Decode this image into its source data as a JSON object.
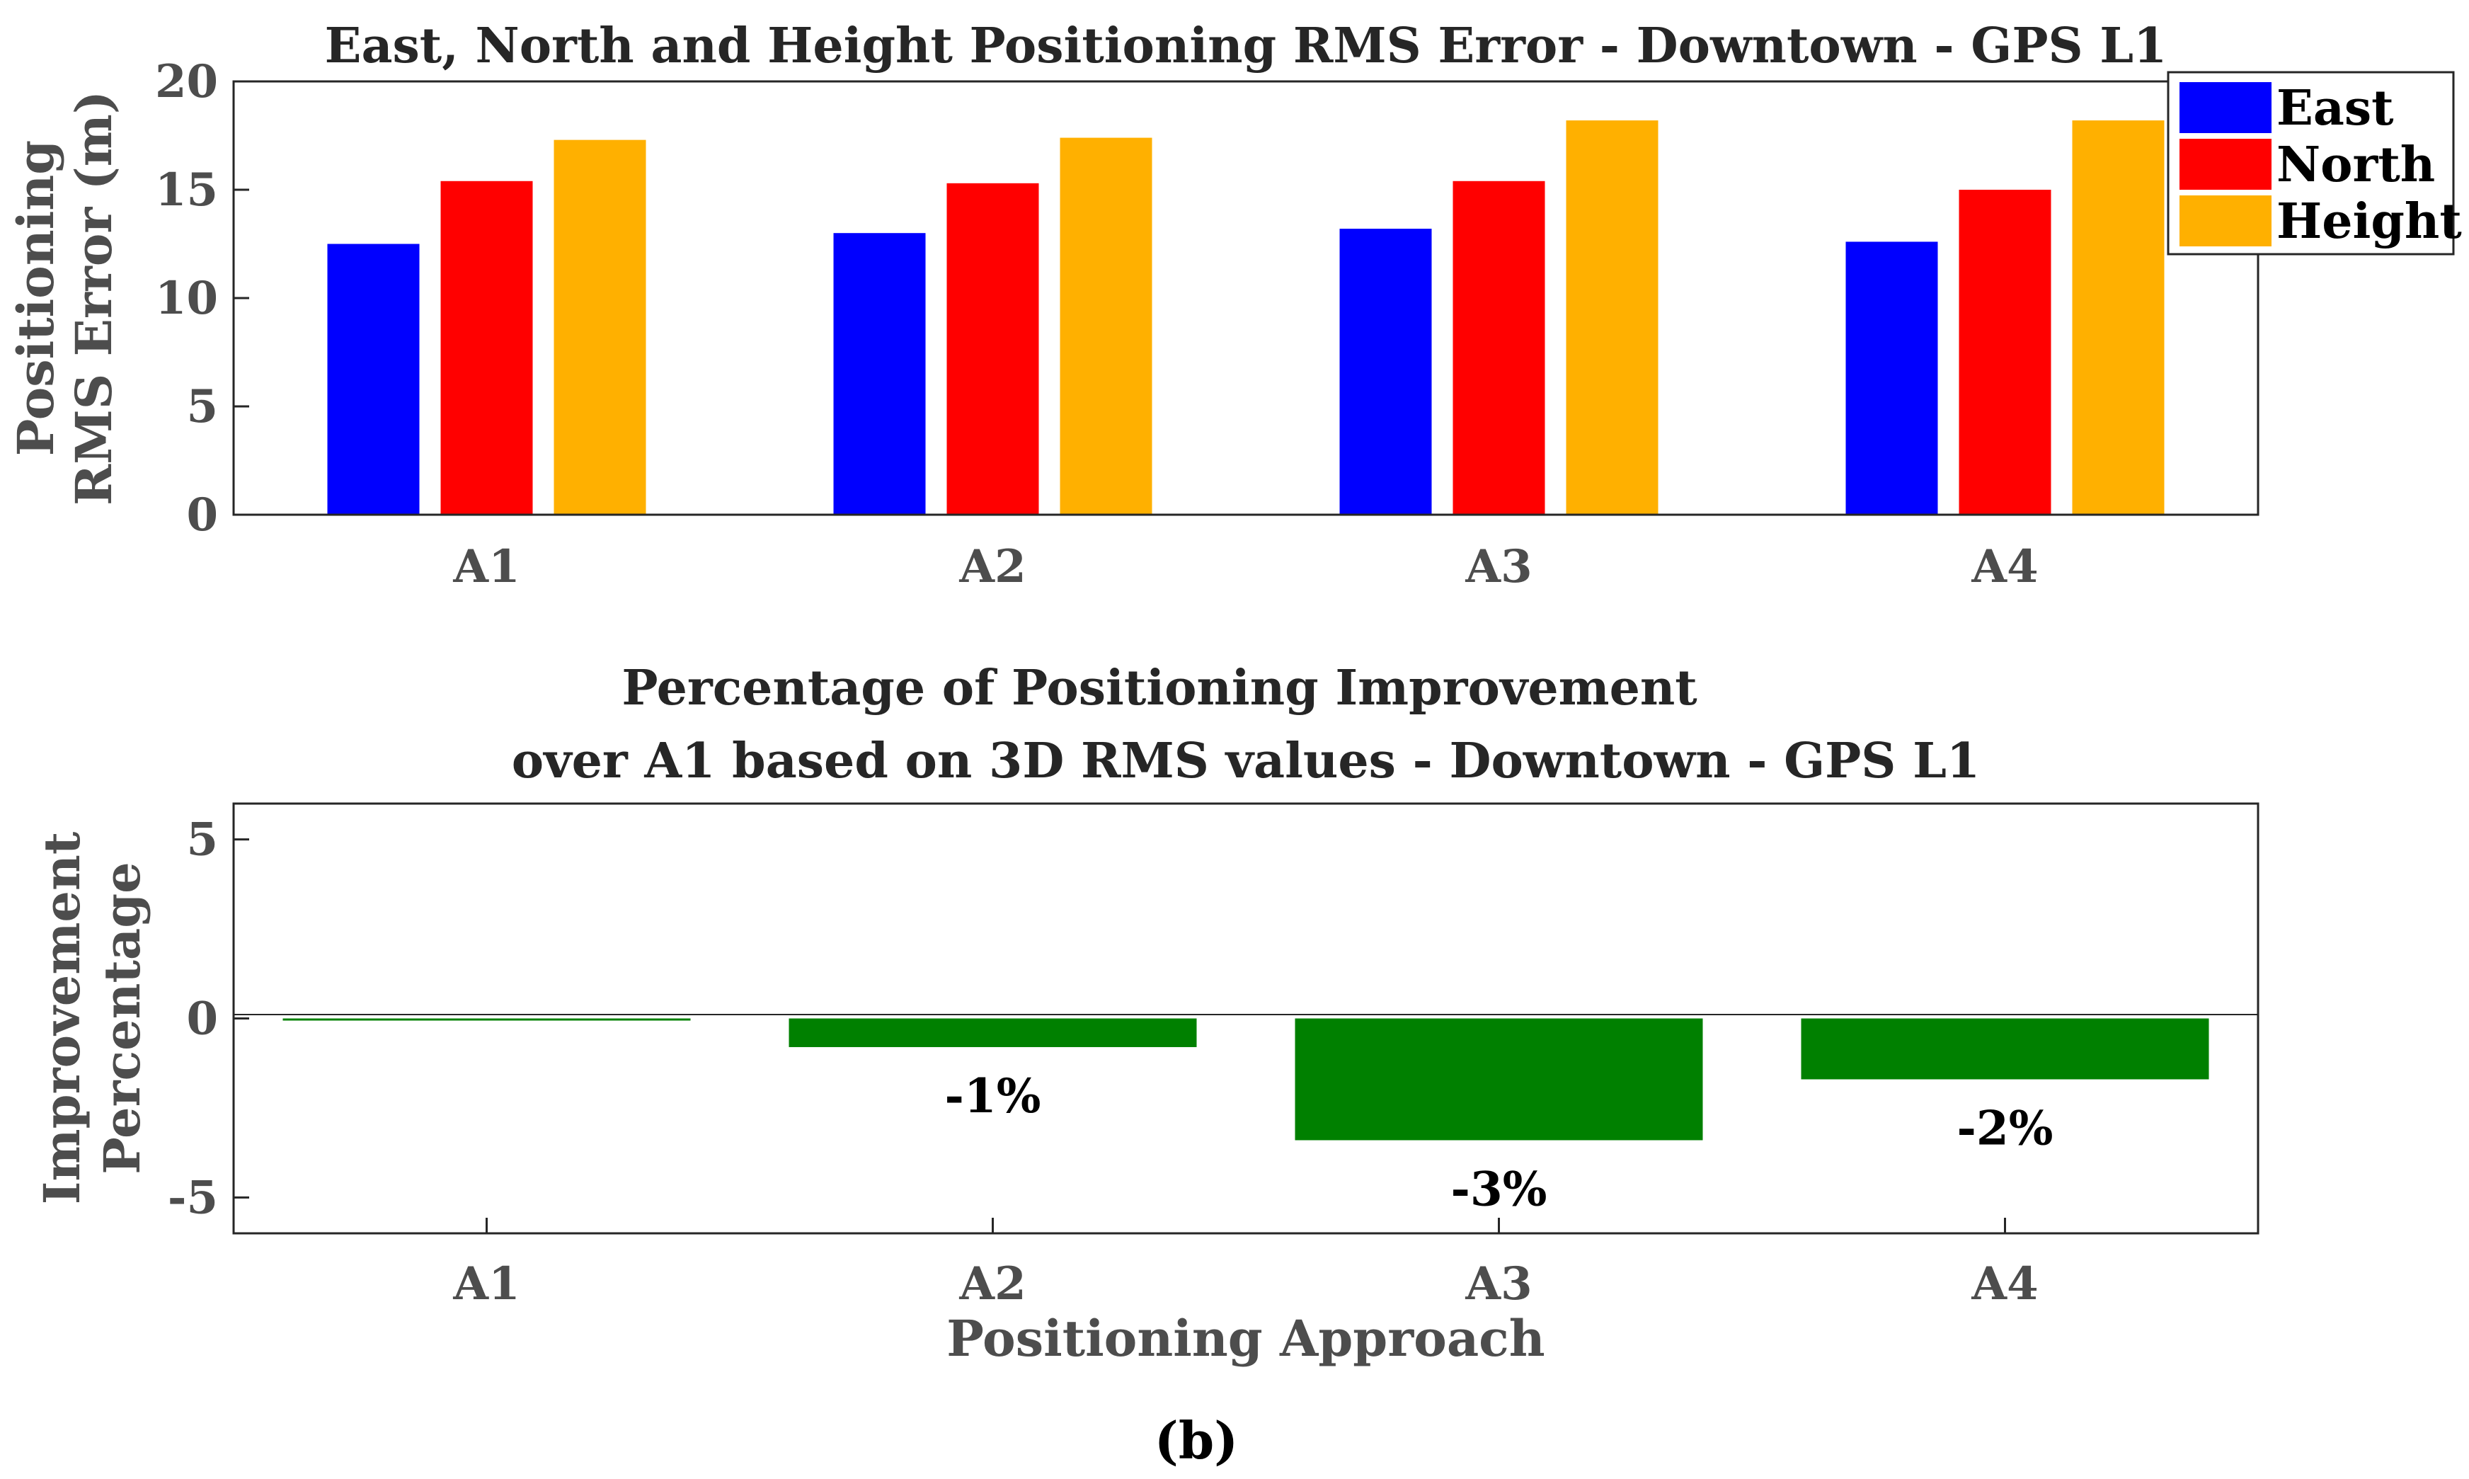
{
  "chart_data": [
    {
      "type": "bar",
      "title": "East, North and Height Positioning RMS Error - Downtown - GPS L1",
      "ylabel_lines": [
        "Positioning",
        "RMS Error (m)"
      ],
      "xlabel": "",
      "categories": [
        "A1",
        "A2",
        "A3",
        "A4"
      ],
      "ylim": [
        0,
        20
      ],
      "yticks": [
        0,
        5,
        10,
        15,
        20
      ],
      "legend_position": "top-right",
      "series": [
        {
          "name": "East",
          "color": "#0000ff",
          "values": [
            12.5,
            13.0,
            13.2,
            12.6
          ]
        },
        {
          "name": "North",
          "color": "#ff0000",
          "values": [
            15.4,
            15.3,
            15.4,
            15.0
          ]
        },
        {
          "name": "Height",
          "color": "#ffb000",
          "values": [
            17.3,
            17.4,
            18.2,
            18.2
          ]
        }
      ]
    },
    {
      "type": "bar",
      "title_lines": [
        "Percentage of Positioning Improvement",
        "over A1 based on 3D RMS values - Downtown - GPS L1"
      ],
      "ylabel_lines": [
        "Improvement",
        "Percentage"
      ],
      "xlabel": "Positioning Approach",
      "categories": [
        "A1",
        "A2",
        "A3",
        "A4"
      ],
      "ylim": [
        -6,
        6
      ],
      "yticks": [
        -5,
        0,
        5
      ],
      "ytick_labels": [
        "-5",
        "0",
        "5"
      ],
      "color": "#008000",
      "values": [
        0,
        -0.8,
        -3.4,
        -1.7
      ],
      "data_labels": [
        "",
        "-1%",
        "-3%",
        "-2%"
      ]
    }
  ],
  "caption": {
    "open": "(",
    "letter": "b",
    "close": ")"
  }
}
